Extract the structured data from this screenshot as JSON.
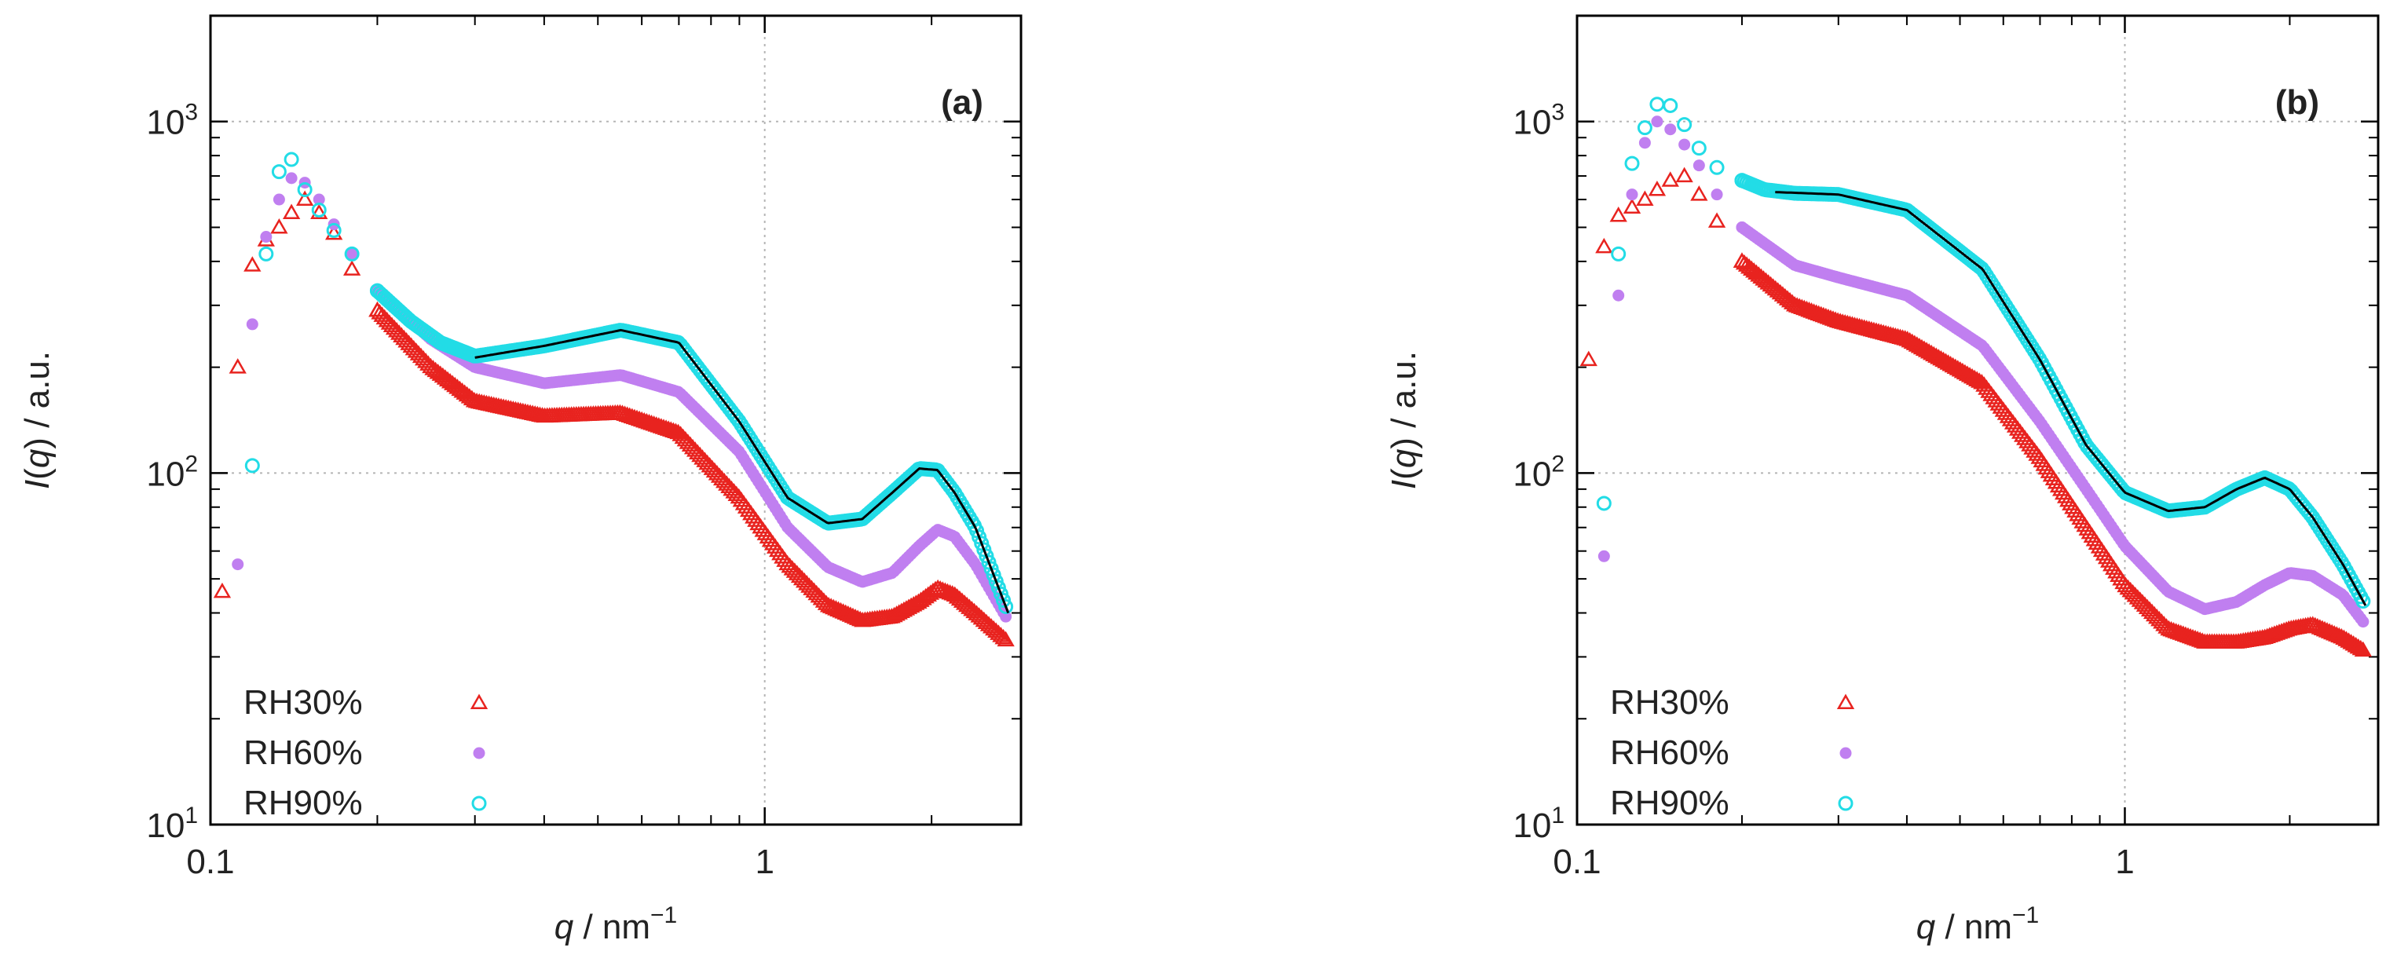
{
  "chart_data": [
    {
      "type": "scatter",
      "panel_label": "(a)",
      "xlabel": {
        "italic": "q",
        "rest": " / nm",
        "exp": "−1"
      },
      "ylabel": {
        "italic": "I",
        "paren": "(q)",
        "rest": " / a.u."
      },
      "xscale": "log",
      "yscale": "log",
      "xlim": [
        0.1,
        2.9
      ],
      "ylim": [
        10,
        2000
      ],
      "xticks": [
        {
          "v": 0.1,
          "label": "0.1"
        },
        {
          "v": 1,
          "label": "1"
        }
      ],
      "yticks": [
        {
          "v": 10,
          "base": "10",
          "exp": "1"
        },
        {
          "v": 100,
          "base": "10",
          "exp": "2"
        },
        {
          "v": 1000,
          "base": "10",
          "exp": "3"
        }
      ],
      "grid": true,
      "legend_position": "bottom-left",
      "series": [
        {
          "name": "RH30%",
          "marker": "triangle",
          "color": "#e8231f",
          "x": [
            0.105,
            0.112,
            0.119,
            0.126,
            0.133,
            0.14,
            0.148,
            0.157,
            0.167,
            0.18,
            0.2,
            0.25,
            0.3,
            0.4,
            0.55,
            0.7,
            0.9,
            1.1,
            1.3,
            1.5,
            1.7,
            1.9,
            2.05,
            2.2,
            2.4,
            2.75
          ],
          "y": [
            46,
            200,
            390,
            460,
            500,
            550,
            600,
            550,
            480,
            380,
            290,
            200,
            160,
            145,
            148,
            130,
            85,
            55,
            42,
            38,
            39,
            43,
            47,
            45,
            40,
            33
          ]
        },
        {
          "name": "RH60%",
          "marker": "circle",
          "color": "#c07ff0",
          "x": [
            0.112,
            0.119,
            0.126,
            0.133,
            0.14,
            0.148,
            0.157,
            0.167,
            0.18,
            0.2,
            0.25,
            0.3,
            0.4,
            0.55,
            0.7,
            0.9,
            1.1,
            1.3,
            1.5,
            1.7,
            1.9,
            2.05,
            2.2,
            2.4,
            2.75
          ],
          "y": [
            55,
            265,
            470,
            600,
            690,
            670,
            600,
            510,
            420,
            330,
            240,
            200,
            180,
            190,
            170,
            115,
            70,
            54,
            49,
            52,
            62,
            69,
            66,
            55,
            38
          ]
        },
        {
          "name": "RH90%",
          "marker": "ring",
          "color": "#22dce6",
          "x": [
            0.119,
            0.126,
            0.133,
            0.14,
            0.148,
            0.157,
            0.167,
            0.18,
            0.2,
            0.23,
            0.26,
            0.3,
            0.4,
            0.55,
            0.7,
            0.9,
            1.1,
            1.3,
            1.5,
            1.7,
            1.9,
            2.05,
            2.2,
            2.4,
            2.75
          ],
          "y": [
            105,
            420,
            720,
            780,
            640,
            560,
            490,
            420,
            330,
            270,
            235,
            215,
            230,
            255,
            235,
            140,
            85,
            72,
            74,
            88,
            103,
            102,
            88,
            70,
            40
          ]
        }
      ],
      "fit": {
        "x": [
          0.3,
          0.4,
          0.55,
          0.7,
          0.9,
          1.1,
          1.3,
          1.5,
          1.7,
          1.9,
          2.05,
          2.2,
          2.4,
          2.75
        ],
        "y": [
          213,
          230,
          255,
          235,
          140,
          85,
          72,
          74,
          88,
          103,
          102,
          88,
          70,
          40
        ]
      }
    },
    {
      "type": "scatter",
      "panel_label": "(b)",
      "xlabel": {
        "italic": "q",
        "rest": " / nm",
        "exp": "−1"
      },
      "ylabel": {
        "italic": "I",
        "paren": "(q)",
        "rest": " / a.u."
      },
      "xscale": "log",
      "yscale": "log",
      "xlim": [
        0.1,
        2.9
      ],
      "ylim": [
        10,
        2000
      ],
      "xticks": [
        {
          "v": 0.1,
          "label": "0.1"
        },
        {
          "v": 1,
          "label": "1"
        }
      ],
      "yticks": [
        {
          "v": 10,
          "base": "10",
          "exp": "1"
        },
        {
          "v": 100,
          "base": "10",
          "exp": "2"
        },
        {
          "v": 1000,
          "base": "10",
          "exp": "3"
        }
      ],
      "grid": true,
      "legend_position": "bottom-left",
      "series": [
        {
          "name": "RH30%",
          "marker": "triangle",
          "color": "#e8231f",
          "x": [
            0.105,
            0.112,
            0.119,
            0.126,
            0.133,
            0.14,
            0.148,
            0.157,
            0.167,
            0.18,
            0.2,
            0.25,
            0.3,
            0.4,
            0.55,
            0.7,
            0.85,
            1.0,
            1.2,
            1.4,
            1.6,
            1.8,
            2.0,
            2.2,
            2.5,
            2.75
          ],
          "y": [
            210,
            440,
            540,
            570,
            600,
            640,
            680,
            700,
            620,
            520,
            400,
            300,
            270,
            240,
            180,
            110,
            70,
            48,
            36,
            33,
            33,
            34,
            36,
            37,
            34,
            31
          ]
        },
        {
          "name": "RH60%",
          "marker": "circle",
          "color": "#c07ff0",
          "x": [
            0.112,
            0.119,
            0.126,
            0.133,
            0.14,
            0.148,
            0.157,
            0.167,
            0.18,
            0.2,
            0.25,
            0.3,
            0.4,
            0.55,
            0.7,
            0.85,
            1.0,
            1.2,
            1.4,
            1.6,
            1.8,
            2.0,
            2.2,
            2.5,
            2.75
          ],
          "y": [
            58,
            320,
            620,
            870,
            1000,
            950,
            860,
            750,
            620,
            500,
            390,
            360,
            320,
            230,
            140,
            90,
            62,
            46,
            41,
            43,
            48,
            52,
            51,
            45,
            37
          ]
        },
        {
          "name": "RH90%",
          "marker": "ring",
          "color": "#22dce6",
          "x": [
            0.112,
            0.119,
            0.126,
            0.133,
            0.14,
            0.148,
            0.157,
            0.167,
            0.18,
            0.2,
            0.22,
            0.25,
            0.3,
            0.4,
            0.55,
            0.7,
            0.85,
            1.0,
            1.2,
            1.4,
            1.6,
            1.8,
            2.0,
            2.2,
            2.5,
            2.75
          ],
          "y": [
            82,
            420,
            760,
            960,
            1120,
            1110,
            980,
            840,
            740,
            680,
            640,
            625,
            620,
            560,
            380,
            210,
            120,
            88,
            78,
            80,
            90,
            97,
            90,
            75,
            55,
            42
          ]
        }
      ],
      "fit": {
        "x": [
          0.23,
          0.3,
          0.4,
          0.55,
          0.7,
          0.85,
          1.0,
          1.2,
          1.4,
          1.6,
          1.8,
          2.0,
          2.2,
          2.5,
          2.75
        ],
        "y": [
          630,
          620,
          560,
          380,
          210,
          120,
          88,
          78,
          80,
          90,
          97,
          90,
          75,
          55,
          42
        ]
      }
    }
  ]
}
